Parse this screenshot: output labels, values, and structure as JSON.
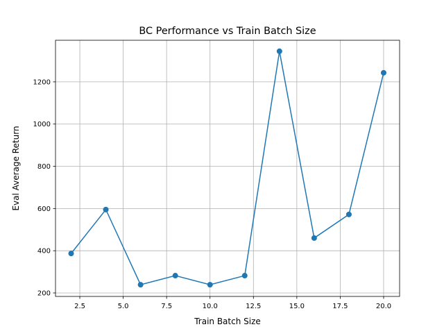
{
  "chart_data": {
    "type": "line",
    "title": "BC Performance vs Train Batch Size",
    "xlabel": "Train Batch Size",
    "ylabel": "Eval Average Return",
    "x": [
      2,
      4,
      6,
      8,
      10,
      12,
      14,
      16,
      18,
      20
    ],
    "series": [
      {
        "name": "Eval Average Return",
        "values": [
          387,
          595,
          239,
          282,
          239,
          282,
          1345,
          460,
          572,
          1243
        ],
        "color": "#1f77b4",
        "marker": "circle"
      }
    ],
    "xlim": [
      1.1,
      20.92
    ],
    "ylim": [
      183.5,
      1397
    ],
    "xticks": [
      2.5,
      5.0,
      7.5,
      10.0,
      12.5,
      15.0,
      17.5,
      20.0
    ],
    "xtick_labels": [
      "2.5",
      "5.0",
      "7.5",
      "10.0",
      "12.5",
      "15.0",
      "17.5",
      "20.0"
    ],
    "yticks": [
      200,
      400,
      600,
      800,
      1000,
      1200
    ],
    "ytick_labels": [
      "200",
      "400",
      "600",
      "800",
      "1000",
      "1200"
    ],
    "grid": true,
    "grid_color": "#b0b0b0"
  }
}
